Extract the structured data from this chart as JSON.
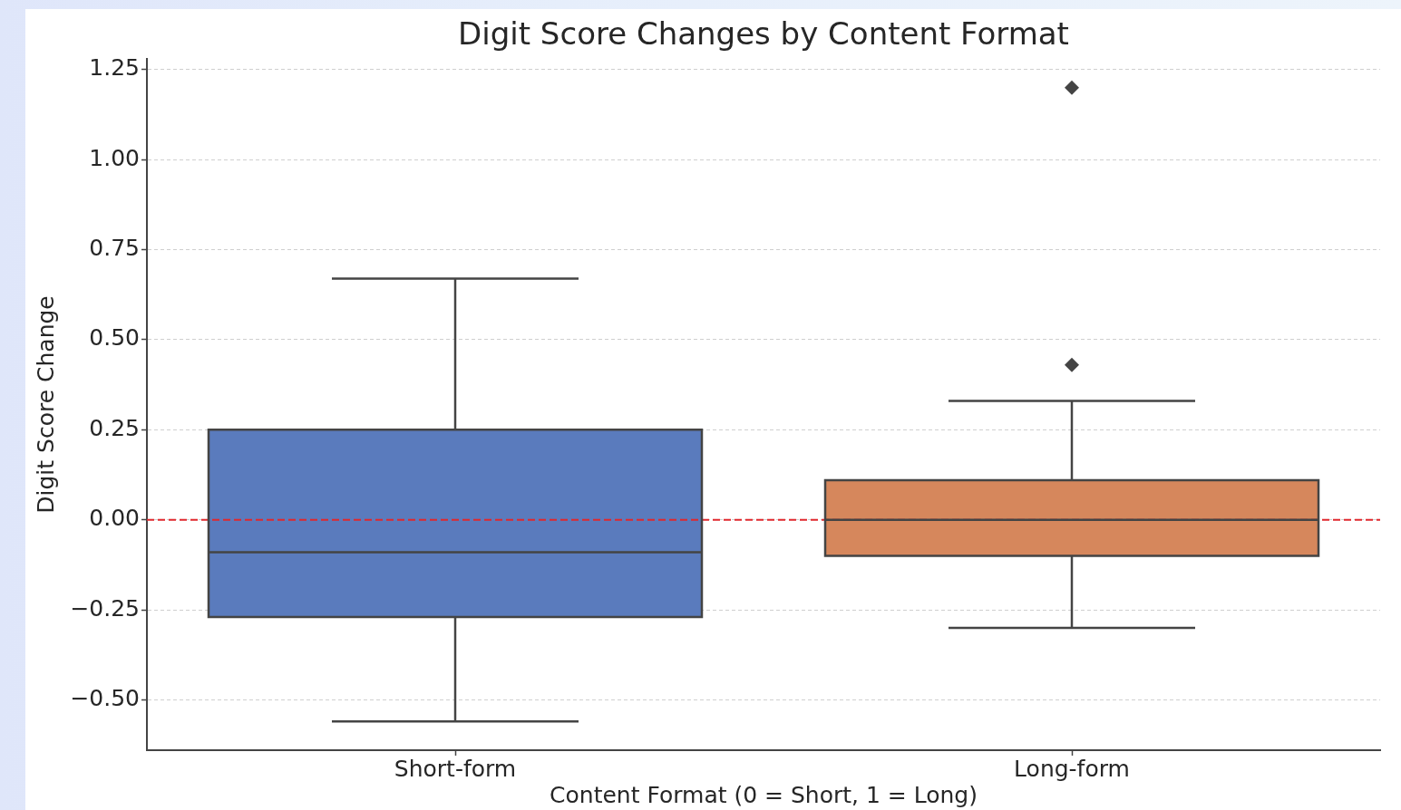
{
  "chart_data": {
    "type": "box",
    "title": "Digit Score Changes by Content Format",
    "xlabel": "Content Format (0 = Short, 1 = Long)",
    "ylabel": "Digit Score Change",
    "categories": [
      "Short-form",
      "Long-form"
    ],
    "boxes": [
      {
        "low": -0.56,
        "q1": -0.27,
        "median": -0.09,
        "q3": 0.25,
        "high": 0.67
      },
      {
        "low": -0.3,
        "q1": -0.1,
        "median": 0,
        "q3": 0.11,
        "high": 0.33,
        "outliers": [
          0.43,
          1.2
        ]
      }
    ],
    "colors": [
      "#5a7bbd",
      "#d6875c"
    ],
    "ylim": [
      -0.64,
      1.28
    ],
    "yticks": [
      {
        "value": -0.5,
        "label": "−0.50"
      },
      {
        "value": -0.25,
        "label": "−0.25"
      },
      {
        "value": 0,
        "label": "0.00"
      },
      0.25,
      {
        "value": 0.5,
        "label": "0.50"
      },
      0.75,
      {
        "value": 1,
        "label": "1.00"
      },
      1.25
    ],
    "grid": "y",
    "marker": "diamond",
    "ref_lines": [
      {
        "axis": "y",
        "value": 0,
        "color": "#e0282e",
        "line_style": "dashed"
      }
    ]
  }
}
